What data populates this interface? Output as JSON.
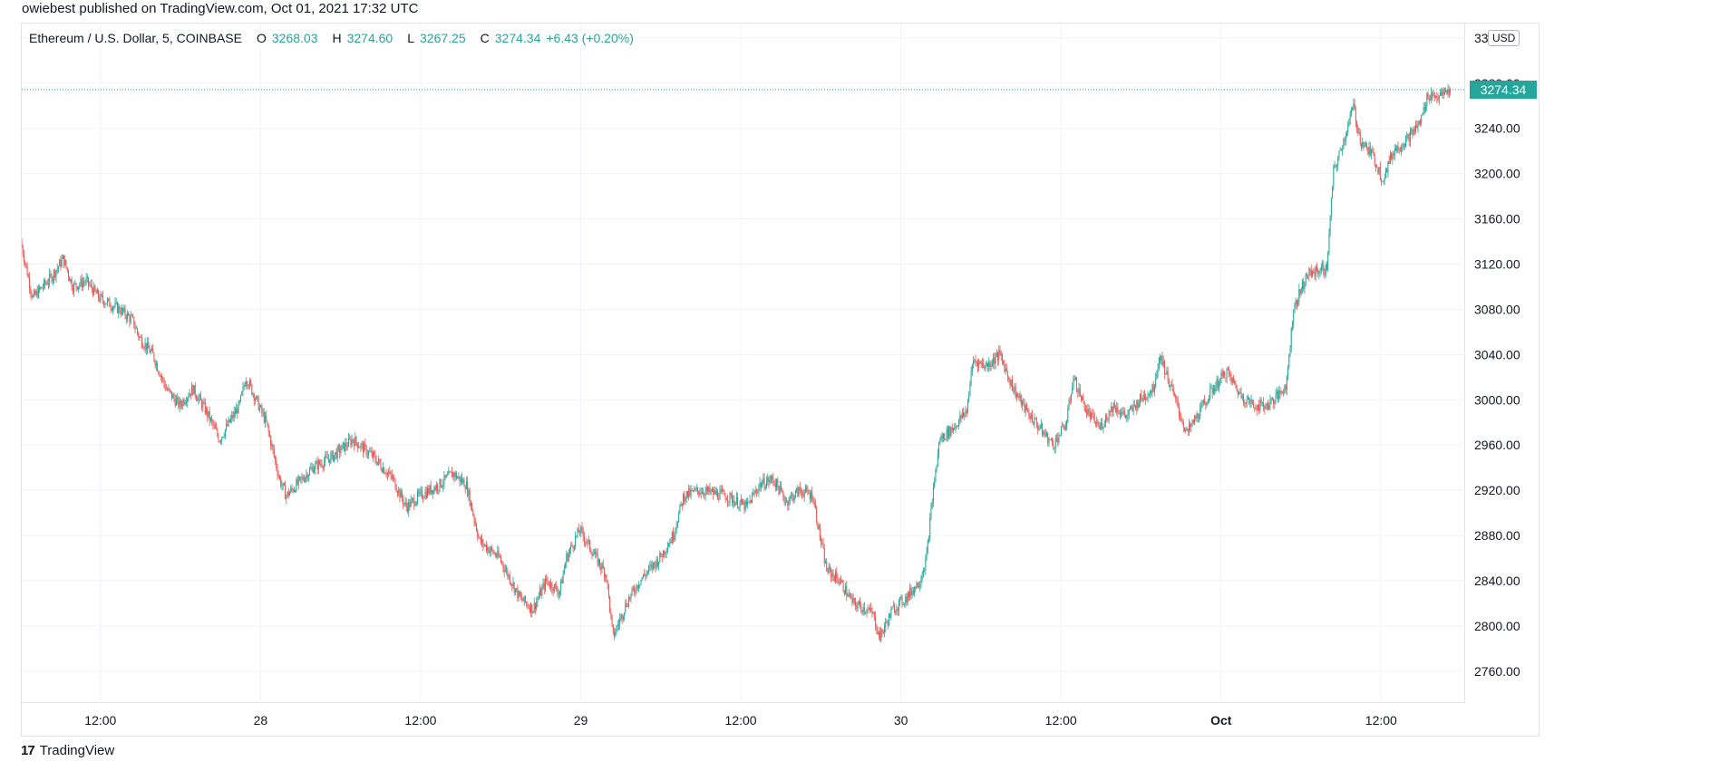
{
  "publisher": "owiebest published on TradingView.com, Oct 01, 2021 17:32 UTC",
  "legend": {
    "symbol": "Ethereum / U.S. Dollar, 5, COINBASE",
    "o_label": "O",
    "o_value": "3268.03",
    "h_label": "H",
    "h_value": "3274.60",
    "l_label": "L",
    "l_value": "3267.25",
    "c_label": "C",
    "c_value": "3274.34",
    "change": "+6.43 (+0.20%)"
  },
  "currency_badge": "USD",
  "last_price_label": "3274.34",
  "footer": {
    "logo_icon": "tradingview-logo-icon",
    "brand": "TradingView"
  },
  "colors": {
    "up": "#26a69a",
    "down": "#ef5350",
    "grid": "#f0f3fa",
    "axis_text": "#131722"
  },
  "chart_data": {
    "type": "candlestick",
    "title": "Ethereum / U.S. Dollar, 5, COINBASE",
    "x_tick_labels": [
      "12:00",
      "28",
      "12:00",
      "29",
      "12:00",
      "30",
      "12:00",
      "Oct",
      "12:00"
    ],
    "x_tick_hours": [
      12,
      24,
      36,
      48,
      60,
      72,
      84,
      96,
      108
    ],
    "x_tick_bold": [
      false,
      false,
      false,
      false,
      false,
      false,
      false,
      true,
      false
    ],
    "x_range_hours": [
      6.1,
      114.3
    ],
    "y_ticks": [
      2760,
      2800,
      2840,
      2880,
      2920,
      2960,
      3000,
      3040,
      3080,
      3120,
      3160,
      3200,
      3240,
      3280,
      3320
    ],
    "y_tick_labels": [
      "2760.00",
      "2800.00",
      "2840.00",
      "2880.00",
      "2920.00",
      "2960.00",
      "3000.00",
      "3040.00",
      "3080.00",
      "3120.00",
      "3160.00",
      "3200.00",
      "3240.00",
      "3280.00",
      "3320.00"
    ],
    "ylim": [
      2731.8,
      3332.7
    ],
    "last_price": 3274.34,
    "price_path": [
      [
        6.1,
        3140
      ],
      [
        7.0,
        3090
      ],
      [
        8.5,
        3110
      ],
      [
        9.3,
        3125
      ],
      [
        10.0,
        3100
      ],
      [
        11.0,
        3105
      ],
      [
        12.0,
        3090
      ],
      [
        13.5,
        3080
      ],
      [
        14.5,
        3070
      ],
      [
        15.0,
        3055
      ],
      [
        16.0,
        3040
      ],
      [
        17.0,
        3010
      ],
      [
        18.0,
        2995
      ],
      [
        19.0,
        3010
      ],
      [
        20.0,
        2990
      ],
      [
        21.0,
        2965
      ],
      [
        22.5,
        2995
      ],
      [
        23.0,
        3020
      ],
      [
        24.5,
        2980
      ],
      [
        25.5,
        2930
      ],
      [
        26.0,
        2915
      ],
      [
        28.0,
        2940
      ],
      [
        29.5,
        2950
      ],
      [
        31.0,
        2965
      ],
      [
        32.5,
        2950
      ],
      [
        34.0,
        2930
      ],
      [
        35.0,
        2905
      ],
      [
        36.0,
        2915
      ],
      [
        37.5,
        2925
      ],
      [
        38.5,
        2935
      ],
      [
        39.5,
        2925
      ],
      [
        40.5,
        2875
      ],
      [
        42.0,
        2860
      ],
      [
        43.5,
        2825
      ],
      [
        44.5,
        2815
      ],
      [
        45.5,
        2840
      ],
      [
        46.5,
        2830
      ],
      [
        47.0,
        2860
      ],
      [
        48.0,
        2885
      ],
      [
        49.0,
        2865
      ],
      [
        50.0,
        2845
      ],
      [
        50.5,
        2790
      ],
      [
        51.5,
        2820
      ],
      [
        52.5,
        2840
      ],
      [
        54.0,
        2860
      ],
      [
        55.0,
        2880
      ],
      [
        55.8,
        2915
      ],
      [
        57.0,
        2920
      ],
      [
        59.0,
        2915
      ],
      [
        60.5,
        2905
      ],
      [
        61.5,
        2925
      ],
      [
        62.5,
        2930
      ],
      [
        63.5,
        2910
      ],
      [
        64.5,
        2920
      ],
      [
        65.5,
        2915
      ],
      [
        66.0,
        2880
      ],
      [
        66.5,
        2850
      ],
      [
        67.5,
        2840
      ],
      [
        68.5,
        2820
      ],
      [
        69.5,
        2815
      ],
      [
        70.0,
        2810
      ],
      [
        70.5,
        2790
      ],
      [
        71.5,
        2815
      ],
      [
        72.5,
        2825
      ],
      [
        73.5,
        2840
      ],
      [
        74.0,
        2860
      ],
      [
        74.5,
        2920
      ],
      [
        75.0,
        2965
      ],
      [
        76.0,
        2975
      ],
      [
        77.0,
        2990
      ],
      [
        77.5,
        3035
      ],
      [
        78.5,
        3030
      ],
      [
        79.5,
        3040
      ],
      [
        80.5,
        3010
      ],
      [
        81.5,
        2990
      ],
      [
        82.5,
        2975
      ],
      [
        83.5,
        2960
      ],
      [
        84.5,
        2980
      ],
      [
        85.0,
        3020
      ],
      [
        86.0,
        2990
      ],
      [
        87.0,
        2975
      ],
      [
        88.0,
        2995
      ],
      [
        89.0,
        2985
      ],
      [
        90.0,
        3000
      ],
      [
        91.0,
        3010
      ],
      [
        91.5,
        3040
      ],
      [
        92.5,
        3005
      ],
      [
        93.5,
        2970
      ],
      [
        94.5,
        2990
      ],
      [
        95.5,
        3010
      ],
      [
        96.5,
        3025
      ],
      [
        97.5,
        3005
      ],
      [
        98.5,
        2995
      ],
      [
        99.5,
        2995
      ],
      [
        100.5,
        3005
      ],
      [
        101.0,
        3015
      ],
      [
        101.5,
        3080
      ],
      [
        102.5,
        3110
      ],
      [
        103.5,
        3115
      ],
      [
        104.0,
        3115
      ],
      [
        104.5,
        3200
      ],
      [
        105.3,
        3230
      ],
      [
        106.0,
        3260
      ],
      [
        106.5,
        3230
      ],
      [
        107.5,
        3215
      ],
      [
        108.2,
        3195
      ],
      [
        109.0,
        3220
      ],
      [
        110.0,
        3230
      ],
      [
        111.0,
        3245
      ],
      [
        111.6,
        3270
      ],
      [
        112.5,
        3268
      ],
      [
        113.2,
        3274.34
      ]
    ]
  }
}
